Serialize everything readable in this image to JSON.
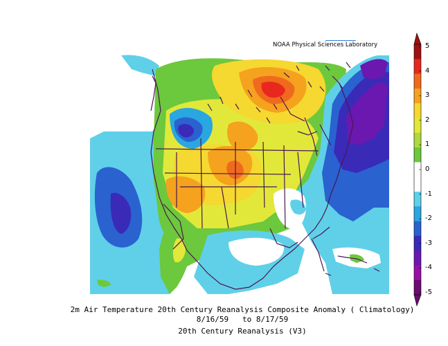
{
  "credit": "NOAA Physical Sciences Laboratory",
  "caption": {
    "line1": "2m Air Temperature 20th Century Reanalysis Composite Anomaly ( Climatology)",
    "line2": "8/16/59   to 8/17/59",
    "line3": "20th Century Reanalysis (V3)"
  },
  "colorbar": {
    "ticks": [
      "5",
      "4",
      "3",
      "2",
      "1",
      "0",
      "-1",
      "-2",
      "-3",
      "-4",
      "-5"
    ],
    "colors": [
      "#a01010",
      "#e8281e",
      "#f06a1e",
      "#f5a21e",
      "#f5d830",
      "#e2e83a",
      "#b0d840",
      "#6cc83c",
      "#ffffff",
      "#ffffff",
      "#5fd0e8",
      "#2aa6e0",
      "#2a62d0",
      "#3a2ab8",
      "#6a18b0",
      "#9810a8",
      "#6a0c70"
    ]
  }
}
